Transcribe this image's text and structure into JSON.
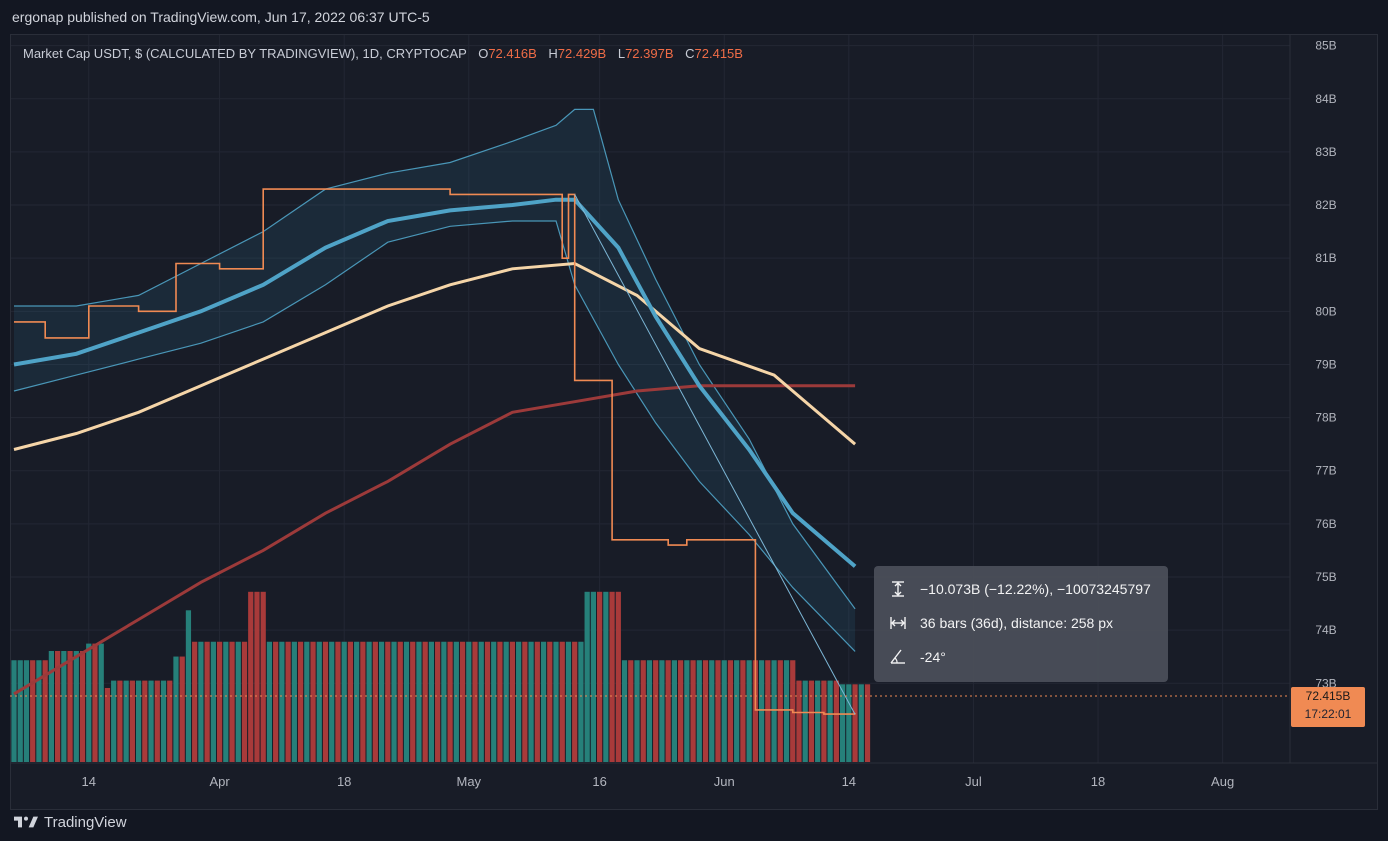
{
  "header": {
    "published_text": "ergonap published on TradingView.com, Jun 17, 2022 06:37 UTC-5"
  },
  "legend": {
    "symbol_text": "Market Cap USDT, $ (CALCULATED BY TRADINGVIEW), 1D, CRYPTOCAP",
    "o_key": "O",
    "o_val": "72.416B",
    "h_key": "H",
    "h_val": "72.429B",
    "l_key": "L",
    "l_val": "72.397B",
    "c_key": "C",
    "c_val": "72.415B"
  },
  "measure_tooltip": {
    "price_change": "−10.073B (−12.22%), −10073245797",
    "bars_info": "36 bars (36d), distance: 258 px",
    "angle": "-24°"
  },
  "price_label": {
    "value": "72.415B",
    "countdown": "17:22:01"
  },
  "footer": {
    "brand": "TradingView"
  },
  "colors": {
    "background": "#131722",
    "price_line": "#f08a53",
    "bollinger": "#4fa3c7",
    "ma_50": "#f5d5a8",
    "ma_200": "#9c3a3a",
    "volume_up": "#26807a",
    "volume_down": "#a83a3a"
  },
  "chart_data": {
    "type": "line",
    "y_axis_labels": [
      "85B",
      "84B",
      "83B",
      "82B",
      "81B",
      "80B",
      "79B",
      "78B",
      "77B",
      "76B",
      "75B",
      "74B",
      "73B"
    ],
    "x_axis_labels": [
      "14",
      "Apr",
      "18",
      "May",
      "16",
      "Jun",
      "14",
      "Jul",
      "18",
      "Aug"
    ],
    "ylim": [
      71.5,
      85.2
    ],
    "x_index_range": [
      0,
      138
    ],
    "x_tick_index": [
      12,
      33,
      53,
      73,
      94,
      114,
      134,
      154,
      174,
      194
    ],
    "series": [
      {
        "name": "",
        "role": "price",
        "points": [
          [
            0,
            79.8
          ],
          [
            5,
            79.5
          ],
          [
            12,
            80.1
          ],
          [
            20,
            80.0
          ],
          [
            26,
            80.9
          ],
          [
            33,
            80.8
          ],
          [
            40,
            82.3
          ],
          [
            47,
            82.3
          ],
          [
            53,
            82.3
          ],
          [
            60,
            82.3
          ],
          [
            70,
            82.2
          ],
          [
            80,
            82.2
          ],
          [
            87,
            82.2
          ],
          [
            88,
            81.0
          ],
          [
            89,
            82.2
          ],
          [
            90,
            78.7
          ],
          [
            95,
            78.7
          ],
          [
            96,
            75.7
          ],
          [
            103,
            75.7
          ],
          [
            105,
            75.6
          ],
          [
            108,
            75.7
          ],
          [
            112,
            75.7
          ],
          [
            118,
            75.7
          ],
          [
            119,
            72.5
          ],
          [
            125,
            72.45
          ],
          [
            130,
            72.42
          ],
          [
            135,
            72.415
          ]
        ]
      },
      {
        "name": "",
        "role": "bb_upper",
        "points": [
          [
            0,
            80.1
          ],
          [
            10,
            80.1
          ],
          [
            20,
            80.3
          ],
          [
            30,
            80.9
          ],
          [
            40,
            81.5
          ],
          [
            50,
            82.3
          ],
          [
            60,
            82.6
          ],
          [
            70,
            82.8
          ],
          [
            80,
            83.2
          ],
          [
            87,
            83.5
          ],
          [
            90,
            83.8
          ],
          [
            93,
            83.8
          ],
          [
            97,
            82.1
          ],
          [
            103,
            80.6
          ],
          [
            110,
            79.0
          ],
          [
            118,
            77.6
          ],
          [
            125,
            76.0
          ],
          [
            135,
            74.4
          ]
        ]
      },
      {
        "name": "",
        "role": "bb_middle",
        "points": [
          [
            0,
            79.0
          ],
          [
            10,
            79.2
          ],
          [
            20,
            79.6
          ],
          [
            30,
            80.0
          ],
          [
            40,
            80.5
          ],
          [
            50,
            81.2
          ],
          [
            60,
            81.7
          ],
          [
            70,
            81.9
          ],
          [
            80,
            82.0
          ],
          [
            87,
            82.1
          ],
          [
            90,
            82.1
          ],
          [
            97,
            81.2
          ],
          [
            103,
            79.9
          ],
          [
            110,
            78.6
          ],
          [
            118,
            77.4
          ],
          [
            125,
            76.2
          ],
          [
            135,
            75.2
          ]
        ]
      },
      {
        "name": "",
        "role": "bb_lower",
        "points": [
          [
            0,
            78.5
          ],
          [
            10,
            78.8
          ],
          [
            20,
            79.1
          ],
          [
            30,
            79.4
          ],
          [
            40,
            79.8
          ],
          [
            50,
            80.5
          ],
          [
            60,
            81.3
          ],
          [
            70,
            81.6
          ],
          [
            80,
            81.7
          ],
          [
            87,
            81.7
          ],
          [
            90,
            80.5
          ],
          [
            97,
            79.0
          ],
          [
            103,
            77.9
          ],
          [
            110,
            76.8
          ],
          [
            118,
            75.8
          ],
          [
            125,
            74.8
          ],
          [
            135,
            73.6
          ]
        ]
      },
      {
        "name": "",
        "role": "ma_50",
        "points": [
          [
            0,
            77.4
          ],
          [
            10,
            77.7
          ],
          [
            20,
            78.1
          ],
          [
            30,
            78.6
          ],
          [
            40,
            79.1
          ],
          [
            50,
            79.6
          ],
          [
            60,
            80.1
          ],
          [
            70,
            80.5
          ],
          [
            80,
            80.8
          ],
          [
            90,
            80.9
          ],
          [
            100,
            80.3
          ],
          [
            110,
            79.3
          ],
          [
            122,
            78.8
          ],
          [
            135,
            77.5
          ]
        ]
      },
      {
        "name": "",
        "role": "ma_200",
        "points": [
          [
            0,
            72.8
          ],
          [
            10,
            73.5
          ],
          [
            20,
            74.2
          ],
          [
            30,
            74.9
          ],
          [
            40,
            75.5
          ],
          [
            50,
            76.2
          ],
          [
            60,
            76.8
          ],
          [
            70,
            77.5
          ],
          [
            80,
            78.1
          ],
          [
            90,
            78.3
          ],
          [
            100,
            78.5
          ],
          [
            110,
            78.6
          ],
          [
            135,
            78.6
          ]
        ]
      }
    ],
    "volume": [
      {
        "v": 0.55,
        "up": true
      },
      {
        "v": 0.55,
        "up": true
      },
      {
        "v": 0.55,
        "up": true
      },
      {
        "v": 0.55,
        "up": false
      },
      {
        "v": 0.55,
        "up": true
      },
      {
        "v": 0.55,
        "up": false
      },
      {
        "v": 0.6,
        "up": true
      },
      {
        "v": 0.6,
        "up": false
      },
      {
        "v": 0.6,
        "up": true
      },
      {
        "v": 0.6,
        "up": false
      },
      {
        "v": 0.6,
        "up": true
      },
      {
        "v": 0.6,
        "up": false
      },
      {
        "v": 0.64,
        "up": true
      },
      {
        "v": 0.64,
        "up": false
      },
      {
        "v": 0.64,
        "up": true
      },
      {
        "v": 0.4,
        "up": false
      },
      {
        "v": 0.44,
        "up": true
      },
      {
        "v": 0.44,
        "up": false
      },
      {
        "v": 0.44,
        "up": true
      },
      {
        "v": 0.44,
        "up": false
      },
      {
        "v": 0.44,
        "up": true
      },
      {
        "v": 0.44,
        "up": false
      },
      {
        "v": 0.44,
        "up": true
      },
      {
        "v": 0.44,
        "up": false
      },
      {
        "v": 0.44,
        "up": true
      },
      {
        "v": 0.44,
        "up": false
      },
      {
        "v": 0.57,
        "up": true
      },
      {
        "v": 0.57,
        "up": false
      },
      {
        "v": 0.82,
        "up": true
      },
      {
        "v": 0.65,
        "up": false
      },
      {
        "v": 0.65,
        "up": true
      },
      {
        "v": 0.65,
        "up": false
      },
      {
        "v": 0.65,
        "up": true
      },
      {
        "v": 0.65,
        "up": false
      },
      {
        "v": 0.65,
        "up": true
      },
      {
        "v": 0.65,
        "up": false
      },
      {
        "v": 0.65,
        "up": true
      },
      {
        "v": 0.65,
        "up": false
      },
      {
        "v": 0.92,
        "up": false
      },
      {
        "v": 0.92,
        "up": false
      },
      {
        "v": 0.92,
        "up": false
      },
      {
        "v": 0.65,
        "up": true
      },
      {
        "v": 0.65,
        "up": false
      },
      {
        "v": 0.65,
        "up": true
      },
      {
        "v": 0.65,
        "up": false
      },
      {
        "v": 0.65,
        "up": true
      },
      {
        "v": 0.65,
        "up": false
      },
      {
        "v": 0.65,
        "up": true
      },
      {
        "v": 0.65,
        "up": false
      },
      {
        "v": 0.65,
        "up": true
      },
      {
        "v": 0.65,
        "up": false
      },
      {
        "v": 0.65,
        "up": true
      },
      {
        "v": 0.65,
        "up": false
      },
      {
        "v": 0.65,
        "up": true
      },
      {
        "v": 0.65,
        "up": false
      },
      {
        "v": 0.65,
        "up": true
      },
      {
        "v": 0.65,
        "up": false
      },
      {
        "v": 0.65,
        "up": true
      },
      {
        "v": 0.65,
        "up": false
      },
      {
        "v": 0.65,
        "up": true
      },
      {
        "v": 0.65,
        "up": false
      },
      {
        "v": 0.65,
        "up": true
      },
      {
        "v": 0.65,
        "up": false
      },
      {
        "v": 0.65,
        "up": true
      },
      {
        "v": 0.65,
        "up": false
      },
      {
        "v": 0.65,
        "up": true
      },
      {
        "v": 0.65,
        "up": false
      },
      {
        "v": 0.65,
        "up": true
      },
      {
        "v": 0.65,
        "up": false
      },
      {
        "v": 0.65,
        "up": true
      },
      {
        "v": 0.65,
        "up": false
      },
      {
        "v": 0.65,
        "up": true
      },
      {
        "v": 0.65,
        "up": false
      },
      {
        "v": 0.65,
        "up": true
      },
      {
        "v": 0.65,
        "up": false
      },
      {
        "v": 0.65,
        "up": true
      },
      {
        "v": 0.65,
        "up": false
      },
      {
        "v": 0.65,
        "up": true
      },
      {
        "v": 0.65,
        "up": false
      },
      {
        "v": 0.65,
        "up": true
      },
      {
        "v": 0.65,
        "up": false
      },
      {
        "v": 0.65,
        "up": true
      },
      {
        "v": 0.65,
        "up": false
      },
      {
        "v": 0.65,
        "up": true
      },
      {
        "v": 0.65,
        "up": false
      },
      {
        "v": 0.65,
        "up": true
      },
      {
        "v": 0.65,
        "up": false
      },
      {
        "v": 0.65,
        "up": true
      },
      {
        "v": 0.65,
        "up": false
      },
      {
        "v": 0.65,
        "up": true
      },
      {
        "v": 0.65,
        "up": false
      },
      {
        "v": 0.65,
        "up": true
      },
      {
        "v": 0.92,
        "up": true
      },
      {
        "v": 0.92,
        "up": true
      },
      {
        "v": 0.92,
        "up": false
      },
      {
        "v": 0.92,
        "up": true
      },
      {
        "v": 0.92,
        "up": false
      },
      {
        "v": 0.92,
        "up": false
      },
      {
        "v": 0.55,
        "up": true
      },
      {
        "v": 0.55,
        "up": false
      },
      {
        "v": 0.55,
        "up": true
      },
      {
        "v": 0.55,
        "up": false
      },
      {
        "v": 0.55,
        "up": true
      },
      {
        "v": 0.55,
        "up": false
      },
      {
        "v": 0.55,
        "up": true
      },
      {
        "v": 0.55,
        "up": false
      },
      {
        "v": 0.55,
        "up": true
      },
      {
        "v": 0.55,
        "up": false
      },
      {
        "v": 0.55,
        "up": true
      },
      {
        "v": 0.55,
        "up": false
      },
      {
        "v": 0.55,
        "up": true
      },
      {
        "v": 0.55,
        "up": false
      },
      {
        "v": 0.55,
        "up": true
      },
      {
        "v": 0.55,
        "up": false
      },
      {
        "v": 0.55,
        "up": true
      },
      {
        "v": 0.55,
        "up": false
      },
      {
        "v": 0.55,
        "up": true
      },
      {
        "v": 0.55,
        "up": false
      },
      {
        "v": 0.55,
        "up": true
      },
      {
        "v": 0.55,
        "up": false
      },
      {
        "v": 0.55,
        "up": true
      },
      {
        "v": 0.55,
        "up": false
      },
      {
        "v": 0.55,
        "up": true
      },
      {
        "v": 0.55,
        "up": false
      },
      {
        "v": 0.55,
        "up": true
      },
      {
        "v": 0.55,
        "up": false
      },
      {
        "v": 0.44,
        "up": false
      },
      {
        "v": 0.44,
        "up": true
      },
      {
        "v": 0.44,
        "up": false
      },
      {
        "v": 0.44,
        "up": true
      },
      {
        "v": 0.44,
        "up": false
      },
      {
        "v": 0.44,
        "up": true
      },
      {
        "v": 0.44,
        "up": false
      },
      {
        "v": 0.42,
        "up": true
      },
      {
        "v": 0.42,
        "up": true
      },
      {
        "v": 0.42,
        "up": false
      },
      {
        "v": 0.42,
        "up": true
      },
      {
        "v": 0.42,
        "up": false
      }
    ]
  }
}
